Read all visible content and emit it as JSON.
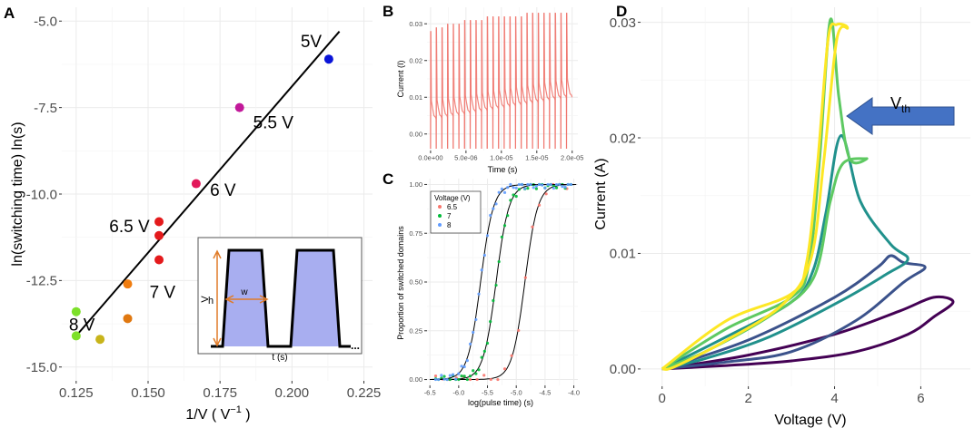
{
  "chart_data": [
    {
      "panel": "A",
      "type": "scatter",
      "xlabel": "1/V ( V",
      "xlabel_sup": "−1",
      "xlabel_end": " )",
      "ylabel": "ln(switching time) ln(s)",
      "xlim": [
        0.12,
        0.228
      ],
      "ylim": [
        -15.4,
        -4.6
      ],
      "x_ticks": [
        0.125,
        0.15,
        0.175,
        0.2,
        0.225
      ],
      "x_tick_labels": [
        "0.125",
        "0.150",
        "0.175",
        "0.200",
        "0.225"
      ],
      "y_ticks": [
        -5.0,
        -7.5,
        -10.0,
        -12.5,
        -15.0
      ],
      "y_tick_labels": [
        "-5.0",
        "-7.5",
        "-10.0",
        "-12.5",
        "-15.0"
      ],
      "points": [
        {
          "x": 0.2128,
          "y": -6.1,
          "color": "#0a14d8"
        },
        {
          "x": 0.1818,
          "y": -7.5,
          "color": "#c2199a"
        },
        {
          "x": 0.1667,
          "y": -9.7,
          "color": "#e2185a"
        },
        {
          "x": 0.1538,
          "y": -10.8,
          "color": "#e41a1c"
        },
        {
          "x": 0.1538,
          "y": -11.2,
          "color": "#e41a1c"
        },
        {
          "x": 0.1538,
          "y": -11.9,
          "color": "#e41a1c"
        },
        {
          "x": 0.1429,
          "y": -12.6,
          "color": "#f07d10"
        },
        {
          "x": 0.1429,
          "y": -13.6,
          "color": "#e07810"
        },
        {
          "x": 0.1333,
          "y": -14.2,
          "color": "#c8b41a"
        },
        {
          "x": 0.125,
          "y": -13.4,
          "color": "#7de02a"
        },
        {
          "x": 0.125,
          "y": -14.1,
          "color": "#7de02a"
        }
      ],
      "fit_line": {
        "x": [
          0.125,
          0.2165
        ],
        "y": [
          -14.1,
          -5.3
        ]
      },
      "annotations": [
        {
          "text": "5V",
          "x": 0.203,
          "y": -5.75
        },
        {
          "text": "5.5 V",
          "x": 0.1865,
          "y": -8.1
        },
        {
          "text": "6 V",
          "x": 0.1715,
          "y": -10.05
        },
        {
          "text": "6.5 V",
          "x": 0.1365,
          "y": -11.1
        },
        {
          "text": "7 V",
          "x": 0.1505,
          "y": -13.0
        },
        {
          "text": "8 V",
          "x": 0.1225,
          "y": -13.95
        }
      ],
      "inset": {
        "labels": {
          "v": "V",
          "h": "h",
          "w": "w",
          "t": "t (s)",
          "dots": "..."
        },
        "fill": "#a8aef0",
        "arrow_color": "#e07b28"
      }
    },
    {
      "panel": "B",
      "type": "line",
      "xlabel": "Time (s)",
      "ylabel": "Current (I)",
      "xlim": [
        -5e-07,
        2.08e-05
      ],
      "ylim": [
        -0.0045,
        0.0345
      ],
      "x_ticks": [
        0,
        5e-06,
        1e-05,
        1.5e-05,
        2e-05
      ],
      "x_tick_labels": [
        "0.0e+00",
        "5.0e-06",
        "1.0e-05",
        "1.5e-05",
        "2.0e-05"
      ],
      "y_ticks": [
        0.0,
        0.01,
        0.02,
        0.03
      ],
      "y_tick_labels": [
        "0.00",
        "0.01",
        "0.02",
        "0.03"
      ],
      "series_color": "#f07870",
      "pulse_count": 25,
      "pulse_period": 8e-07,
      "peak_values": [
        0.028,
        0.029,
        0.029,
        0.03,
        0.03,
        0.03,
        0.031,
        0.031,
        0.031,
        0.031,
        0.032,
        0.032,
        0.032,
        0.032,
        0.032,
        0.032,
        0.032,
        0.033,
        0.033,
        0.033,
        0.033,
        0.033,
        0.033,
        0.033,
        0.033
      ],
      "baseline_start": 0.005,
      "baseline_end": 0.011,
      "trough": -0.004
    },
    {
      "panel": "C",
      "type": "scatter",
      "xlabel": "log(pulse time)  (s)",
      "ylabel": "Proportion of switched domains",
      "xlim": [
        -6.55,
        -3.93
      ],
      "ylim": [
        -0.03,
        1.03
      ],
      "x_ticks": [
        -6.5,
        -6.0,
        -5.5,
        -5.0,
        -4.5,
        -4.0
      ],
      "x_tick_labels": [
        "-6.5",
        "-6.0",
        "-5.5",
        "-5.0",
        "-4.5",
        "-4.0"
      ],
      "y_ticks": [
        0.0,
        0.25,
        0.5,
        0.75,
        1.0
      ],
      "y_tick_labels": [
        "0.00",
        "0.25",
        "0.50",
        "0.75",
        "1.00"
      ],
      "legend_title": "Voltage (V)",
      "legend_position": "top-left",
      "series": [
        {
          "name": "6.5",
          "color": "#f8766d",
          "x0": -4.85,
          "k": 9.0
        },
        {
          "name": "7",
          "color": "#00ba38",
          "x0": -5.35,
          "k": 9.0
        },
        {
          "name": "8",
          "color": "#619cff",
          "x0": -5.62,
          "k": 9.0
        }
      ],
      "scatter_x_min": -6.4,
      "scatter_x_max": -4.05
    },
    {
      "panel": "D",
      "type": "line",
      "xlabel": "Voltage (V)",
      "ylabel": "Current (A)",
      "xlim": [
        -0.5,
        7.15
      ],
      "ylim": [
        -0.0015,
        0.0313
      ],
      "x_ticks": [
        0,
        2,
        4,
        6
      ],
      "x_tick_labels": [
        "0",
        "2",
        "4",
        "6"
      ],
      "y_ticks": [
        0.0,
        0.01,
        0.02,
        0.03
      ],
      "y_tick_labels": [
        "0.00",
        "0.01",
        "0.02",
        "0.03"
      ],
      "annotation": {
        "text": "V",
        "sub": "th"
      },
      "arrow_color": "#4472c4",
      "loops": [
        {
          "name": "loop-1",
          "color": "#440154",
          "points": [
            [
              0,
              0
            ],
            [
              2,
              0.0012
            ],
            [
              4,
              0.003
            ],
            [
              5.5,
              0.005
            ],
            [
              6.3,
              0.0062
            ],
            [
              6.75,
              0.0058
            ],
            [
              6.3,
              0.0045
            ],
            [
              5.7,
              0.003
            ],
            [
              4.5,
              0.0015
            ],
            [
              3,
              0.0007
            ],
            [
              1.5,
              0.0003
            ],
            [
              0,
              0
            ]
          ]
        },
        {
          "name": "loop-2",
          "color": "#3b528b",
          "points": [
            [
              0,
              0
            ],
            [
              2,
              0.0025
            ],
            [
              4,
              0.0062
            ],
            [
              5,
              0.0088
            ],
            [
              5.3,
              0.0098
            ],
            [
              5.6,
              0.0092
            ],
            [
              6.1,
              0.0088
            ],
            [
              5.6,
              0.0075
            ],
            [
              4.5,
              0.0042
            ],
            [
              3,
              0.0015
            ],
            [
              1.5,
              0.0006
            ],
            [
              0,
              0
            ]
          ]
        },
        {
          "name": "loop-3",
          "color": "#21918c",
          "points": [
            [
              0,
              0
            ],
            [
              1.5,
              0.0028
            ],
            [
              3,
              0.0058
            ],
            [
              3.5,
              0.0085
            ],
            [
              3.8,
              0.0135
            ],
            [
              4.15,
              0.0202
            ],
            [
              4.6,
              0.0145
            ],
            [
              5.3,
              0.0108
            ],
            [
              5.7,
              0.0095
            ],
            [
              5.2,
              0.0082
            ],
            [
              4.2,
              0.006
            ],
            [
              2.5,
              0.0028
            ],
            [
              1,
              0.0009
            ],
            [
              0,
              0
            ]
          ]
        },
        {
          "name": "loop-4",
          "color": "#5ec962",
          "points": [
            [
              0,
              0
            ],
            [
              1.5,
              0.0035
            ],
            [
              3,
              0.0062
            ],
            [
              3.4,
              0.009
            ],
            [
              3.65,
              0.018
            ],
            [
              3.9,
              0.0302
            ],
            [
              4.1,
              0.0235
            ],
            [
              4.35,
              0.0182
            ],
            [
              4.75,
              0.0182
            ],
            [
              4.2,
              0.0178
            ],
            [
              3.9,
              0.0145
            ],
            [
              3.5,
              0.0078
            ],
            [
              2.5,
              0.0046
            ],
            [
              1,
              0.0015
            ],
            [
              0,
              0
            ]
          ]
        },
        {
          "name": "loop-5",
          "color": "#fde725",
          "points": [
            [
              0,
              0
            ],
            [
              1.5,
              0.0042
            ],
            [
              3,
              0.0065
            ],
            [
              3.35,
              0.0092
            ],
            [
              3.6,
              0.0175
            ],
            [
              3.85,
              0.0285
            ],
            [
              4.05,
              0.0298
            ],
            [
              4.3,
              0.0295
            ],
            [
              4.05,
              0.0285
            ],
            [
              3.75,
              0.018
            ],
            [
              3.45,
              0.0095
            ],
            [
              2.8,
              0.0056
            ],
            [
              1.5,
              0.0025
            ],
            [
              0.3,
              0.0002
            ],
            [
              0,
              0
            ]
          ]
        }
      ]
    }
  ]
}
